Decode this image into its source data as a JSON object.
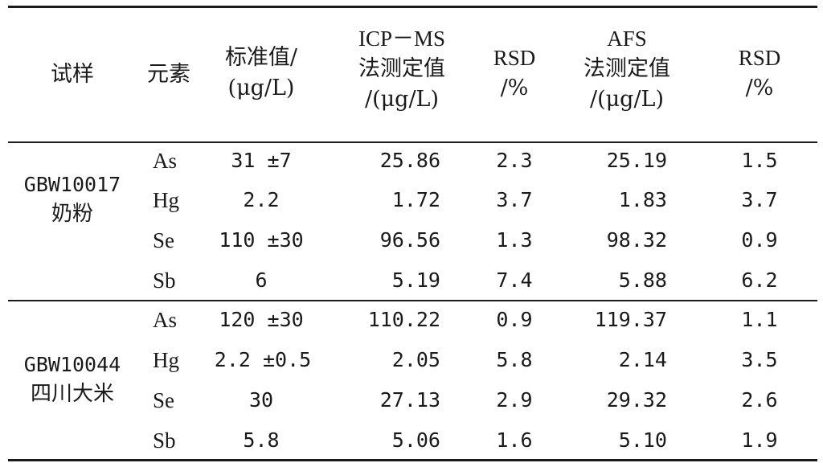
{
  "headers": {
    "sample": "试样",
    "element": "元素",
    "standard": [
      "标准值/",
      "(μg/L)"
    ],
    "icpms": [
      "ICP－MS",
      "法测定值",
      "/(μg/L)"
    ],
    "rsd1": [
      "RSD",
      "/%"
    ],
    "afs": [
      "AFS",
      "法测定值",
      "/(μg/L)"
    ],
    "rsd2": [
      "RSD",
      "/%"
    ]
  },
  "groups": [
    {
      "sample": [
        "GBW10017",
        "奶粉"
      ],
      "rows": [
        {
          "element": "As",
          "standard": "31 ±7",
          "icpms": "25.86",
          "rsd1": "2.3",
          "afs": "25.19",
          "rsd2": "1.5"
        },
        {
          "element": "Hg",
          "standard": "2.2",
          "icpms": "1.72",
          "rsd1": "3.7",
          "afs": "1.83",
          "rsd2": "3.7"
        },
        {
          "element": "Se",
          "standard": "110 ±30",
          "icpms": "96.56",
          "rsd1": "1.3",
          "afs": "98.32",
          "rsd2": "0.9"
        },
        {
          "element": "Sb",
          "standard": "6",
          "icpms": "5.19",
          "rsd1": "7.4",
          "afs": "5.88",
          "rsd2": "6.2"
        }
      ]
    },
    {
      "sample": [
        "GBW10044",
        "四川大米"
      ],
      "rows": [
        {
          "element": "As",
          "standard": "120 ±30",
          "icpms": "110.22",
          "rsd1": "0.9",
          "afs": "119.37",
          "rsd2": "1.1"
        },
        {
          "element": "Hg",
          "standard": "2.2 ±0.5",
          "icpms": "2.05",
          "rsd1": "5.8",
          "afs": "2.14",
          "rsd2": "3.5"
        },
        {
          "element": "Se",
          "standard": "30",
          "icpms": "27.13",
          "rsd1": "2.9",
          "afs": "29.32",
          "rsd2": "2.6"
        },
        {
          "element": "Sb",
          "standard": "5.8",
          "icpms": "5.06",
          "rsd1": "1.6",
          "afs": "5.10",
          "rsd2": "1.9"
        }
      ]
    }
  ]
}
